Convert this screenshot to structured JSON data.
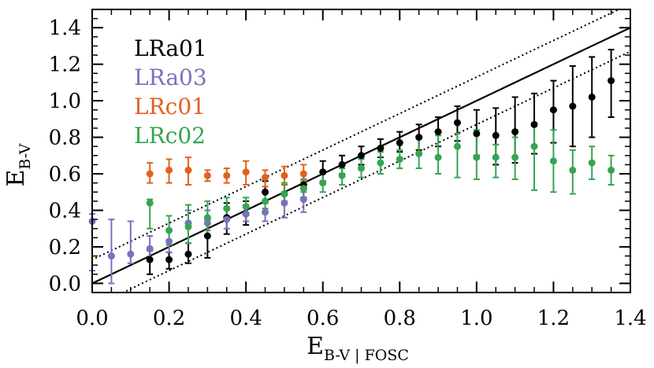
{
  "chart_data": {
    "type": "scatter",
    "title": "",
    "xlabel": {
      "main": "E",
      "sub": "B-V | FOSC"
    },
    "ylabel": {
      "main": "E",
      "sub": "B-V"
    },
    "xlim": [
      0.0,
      1.4
    ],
    "ylim": [
      -0.05,
      1.5
    ],
    "xticks": [
      0.0,
      0.2,
      0.4,
      0.6,
      0.8,
      1.0,
      1.2,
      1.4
    ],
    "xtick_labels": [
      "0.0",
      "0.2",
      "0.4",
      "0.6",
      "0.8",
      "1.0",
      "1.2",
      "1.4"
    ],
    "yticks": [
      0.0,
      0.2,
      0.4,
      0.6,
      0.8,
      1.0,
      1.2,
      1.4
    ],
    "ytick_labels": [
      "0.0",
      "0.2",
      "0.4",
      "0.6",
      "0.8",
      "1.0",
      "1.2",
      "1.4"
    ],
    "grid": false,
    "legend_position": "top-left",
    "reference_lines": [
      {
        "style": "solid",
        "slope": 1.0,
        "intercept": 0.0
      },
      {
        "style": "dotted",
        "slope": 1.0,
        "intercept": 0.13
      },
      {
        "style": "dotted",
        "slope": 1.0,
        "intercept": -0.13
      }
    ],
    "series": [
      {
        "name": "LRa01",
        "color": "#000000",
        "points": [
          {
            "x": 0.15,
            "y": 0.13,
            "lo": 0.05,
            "hi": 0.18
          },
          {
            "x": 0.2,
            "y": 0.13,
            "lo": 0.08,
            "hi": 0.17
          },
          {
            "x": 0.25,
            "y": 0.16,
            "lo": 0.11,
            "hi": 0.22
          },
          {
            "x": 0.3,
            "y": 0.26,
            "lo": 0.14,
            "hi": 0.35
          },
          {
            "x": 0.35,
            "y": 0.36,
            "lo": 0.27,
            "hi": 0.44
          },
          {
            "x": 0.4,
            "y": 0.38,
            "lo": 0.32,
            "hi": 0.45
          },
          {
            "x": 0.45,
            "y": 0.5,
            "lo": 0.44,
            "hi": 0.56
          },
          {
            "x": 0.5,
            "y": 0.49,
            "lo": 0.44,
            "hi": 0.54
          },
          {
            "x": 0.55,
            "y": 0.54,
            "lo": 0.47,
            "hi": 0.6
          },
          {
            "x": 0.6,
            "y": 0.61,
            "lo": 0.56,
            "hi": 0.67
          },
          {
            "x": 0.65,
            "y": 0.65,
            "lo": 0.6,
            "hi": 0.7
          },
          {
            "x": 0.7,
            "y": 0.7,
            "lo": 0.65,
            "hi": 0.75
          },
          {
            "x": 0.75,
            "y": 0.74,
            "lo": 0.69,
            "hi": 0.79
          },
          {
            "x": 0.8,
            "y": 0.77,
            "lo": 0.72,
            "hi": 0.83
          },
          {
            "x": 0.85,
            "y": 0.8,
            "lo": 0.73,
            "hi": 0.87
          },
          {
            "x": 0.9,
            "y": 0.83,
            "lo": 0.75,
            "hi": 0.91
          },
          {
            "x": 0.95,
            "y": 0.88,
            "lo": 0.78,
            "hi": 0.97
          },
          {
            "x": 1.0,
            "y": 0.82,
            "lo": 0.7,
            "hi": 0.95
          },
          {
            "x": 1.05,
            "y": 0.81,
            "lo": 0.65,
            "hi": 0.96
          },
          {
            "x": 1.1,
            "y": 0.83,
            "lo": 0.66,
            "hi": 1.02
          },
          {
            "x": 1.15,
            "y": 0.87,
            "lo": 0.71,
            "hi": 1.04
          },
          {
            "x": 1.2,
            "y": 0.95,
            "lo": 0.77,
            "hi": 1.11
          },
          {
            "x": 1.25,
            "y": 0.97,
            "lo": 0.75,
            "hi": 1.19
          },
          {
            "x": 1.3,
            "y": 1.02,
            "lo": 0.8,
            "hi": 1.24
          },
          {
            "x": 1.35,
            "y": 1.11,
            "lo": 0.91,
            "hi": 1.28
          }
        ]
      },
      {
        "name": "LRa03",
        "color": "#7b70bc",
        "points": [
          {
            "x": 0.0,
            "y": 0.34,
            "lo": 0.07,
            "hi": 0.38
          },
          {
            "x": 0.05,
            "y": 0.15,
            "lo": 0.0,
            "hi": 0.35
          },
          {
            "x": 0.1,
            "y": 0.16,
            "lo": 0.11,
            "hi": 0.34
          },
          {
            "x": 0.15,
            "y": 0.19,
            "lo": 0.13,
            "hi": 0.26
          },
          {
            "x": 0.2,
            "y": 0.23,
            "lo": 0.17,
            "hi": 0.29
          },
          {
            "x": 0.25,
            "y": 0.33,
            "lo": 0.22,
            "hi": 0.4
          },
          {
            "x": 0.3,
            "y": 0.33,
            "lo": 0.26,
            "hi": 0.4
          },
          {
            "x": 0.35,
            "y": 0.35,
            "lo": 0.3,
            "hi": 0.41
          },
          {
            "x": 0.4,
            "y": 0.38,
            "lo": 0.34,
            "hi": 0.43
          },
          {
            "x": 0.45,
            "y": 0.39,
            "lo": 0.34,
            "hi": 0.45
          },
          {
            "x": 0.5,
            "y": 0.44,
            "lo": 0.36,
            "hi": 0.5
          },
          {
            "x": 0.55,
            "y": 0.46,
            "lo": 0.39,
            "hi": 0.5
          }
        ]
      },
      {
        "name": "LRc01",
        "color": "#e2611c",
        "points": [
          {
            "x": 0.15,
            "y": 0.6,
            "lo": 0.55,
            "hi": 0.66
          },
          {
            "x": 0.2,
            "y": 0.62,
            "lo": 0.55,
            "hi": 0.68
          },
          {
            "x": 0.25,
            "y": 0.62,
            "lo": 0.54,
            "hi": 0.69
          },
          {
            "x": 0.3,
            "y": 0.59,
            "lo": 0.56,
            "hi": 0.62
          },
          {
            "x": 0.35,
            "y": 0.59,
            "lo": 0.55,
            "hi": 0.63
          },
          {
            "x": 0.4,
            "y": 0.61,
            "lo": 0.54,
            "hi": 0.67
          },
          {
            "x": 0.45,
            "y": 0.58,
            "lo": 0.53,
            "hi": 0.62
          },
          {
            "x": 0.5,
            "y": 0.59,
            "lo": 0.54,
            "hi": 0.64
          },
          {
            "x": 0.55,
            "y": 0.6,
            "lo": 0.56,
            "hi": 0.65
          }
        ]
      },
      {
        "name": "LRc02",
        "color": "#35a552",
        "points": [
          {
            "x": 0.15,
            "y": 0.44,
            "lo": 0.3,
            "hi": 0.46
          },
          {
            "x": 0.2,
            "y": 0.29,
            "lo": 0.21,
            "hi": 0.37
          },
          {
            "x": 0.25,
            "y": 0.31,
            "lo": 0.22,
            "hi": 0.43
          },
          {
            "x": 0.3,
            "y": 0.36,
            "lo": 0.29,
            "hi": 0.45
          },
          {
            "x": 0.35,
            "y": 0.41,
            "lo": 0.35,
            "hi": 0.47
          },
          {
            "x": 0.4,
            "y": 0.42,
            "lo": 0.38,
            "hi": 0.47
          },
          {
            "x": 0.45,
            "y": 0.45,
            "lo": 0.41,
            "hi": 0.5
          },
          {
            "x": 0.5,
            "y": 0.49,
            "lo": 0.45,
            "hi": 0.55
          },
          {
            "x": 0.55,
            "y": 0.52,
            "lo": 0.47,
            "hi": 0.57
          },
          {
            "x": 0.6,
            "y": 0.55,
            "lo": 0.5,
            "hi": 0.6
          },
          {
            "x": 0.65,
            "y": 0.59,
            "lo": 0.54,
            "hi": 0.63
          },
          {
            "x": 0.7,
            "y": 0.63,
            "lo": 0.58,
            "hi": 0.68
          },
          {
            "x": 0.75,
            "y": 0.66,
            "lo": 0.6,
            "hi": 0.72
          },
          {
            "x": 0.8,
            "y": 0.68,
            "lo": 0.63,
            "hi": 0.73
          },
          {
            "x": 0.85,
            "y": 0.71,
            "lo": 0.63,
            "hi": 0.8
          },
          {
            "x": 0.9,
            "y": 0.69,
            "lo": 0.6,
            "hi": 0.81
          },
          {
            "x": 0.95,
            "y": 0.75,
            "lo": 0.58,
            "hi": 0.82
          },
          {
            "x": 1.0,
            "y": 0.69,
            "lo": 0.57,
            "hi": 0.84
          },
          {
            "x": 1.05,
            "y": 0.69,
            "lo": 0.58,
            "hi": 0.76
          },
          {
            "x": 1.1,
            "y": 0.69,
            "lo": 0.57,
            "hi": 0.8
          },
          {
            "x": 1.15,
            "y": 0.75,
            "lo": 0.51,
            "hi": 0.86
          },
          {
            "x": 1.2,
            "y": 0.67,
            "lo": 0.5,
            "hi": 0.84
          },
          {
            "x": 1.25,
            "y": 0.62,
            "lo": 0.49,
            "hi": 0.73
          },
          {
            "x": 1.3,
            "y": 0.66,
            "lo": 0.57,
            "hi": 0.75
          },
          {
            "x": 1.35,
            "y": 0.62,
            "lo": 0.54,
            "hi": 0.7
          }
        ]
      }
    ]
  }
}
